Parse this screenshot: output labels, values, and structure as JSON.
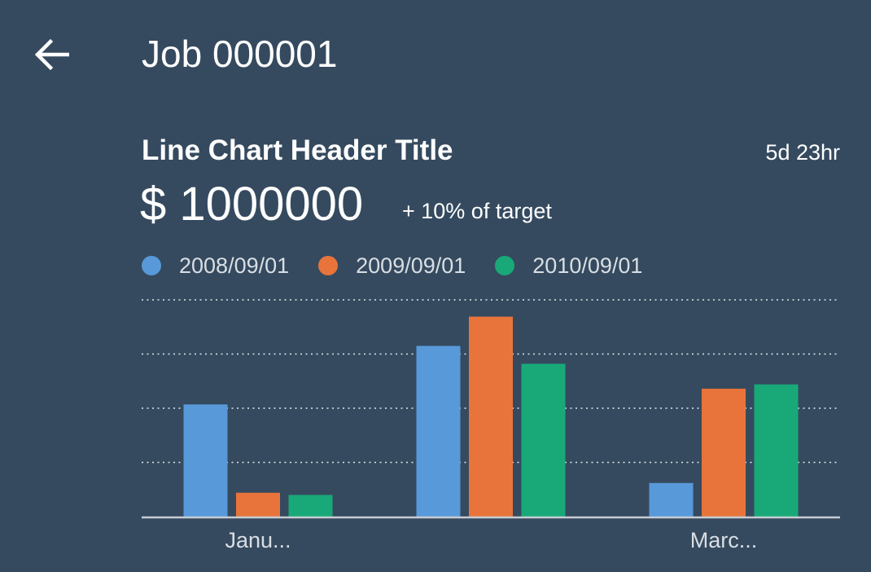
{
  "header": {
    "back_icon": "arrow-left-icon",
    "title": "Job 000001"
  },
  "card": {
    "title": "Line Chart Header Title",
    "time": "5d 23hr",
    "kpi_value": "$ 1000000",
    "kpi_sub": "+ 10% of target"
  },
  "chart_data": {
    "type": "bar",
    "categories": [
      "Janu...",
      "",
      "Marc..."
    ],
    "series": [
      {
        "name": "2008/09/01",
        "color": "#5899da",
        "values": [
          2.07,
          3.15,
          0.62
        ]
      },
      {
        "name": "2009/09/01",
        "color": "#e8743b",
        "values": [
          0.44,
          3.69,
          2.36
        ]
      },
      {
        "name": "2010/09/01",
        "color": "#19a979",
        "values": [
          0.4,
          2.82,
          2.44
        ]
      }
    ],
    "ylim": [
      0,
      4
    ],
    "grid": true,
    "legend_position": "top-left",
    "axis_color": "#c6ccd3",
    "grid_color": "#e4e8eb"
  }
}
